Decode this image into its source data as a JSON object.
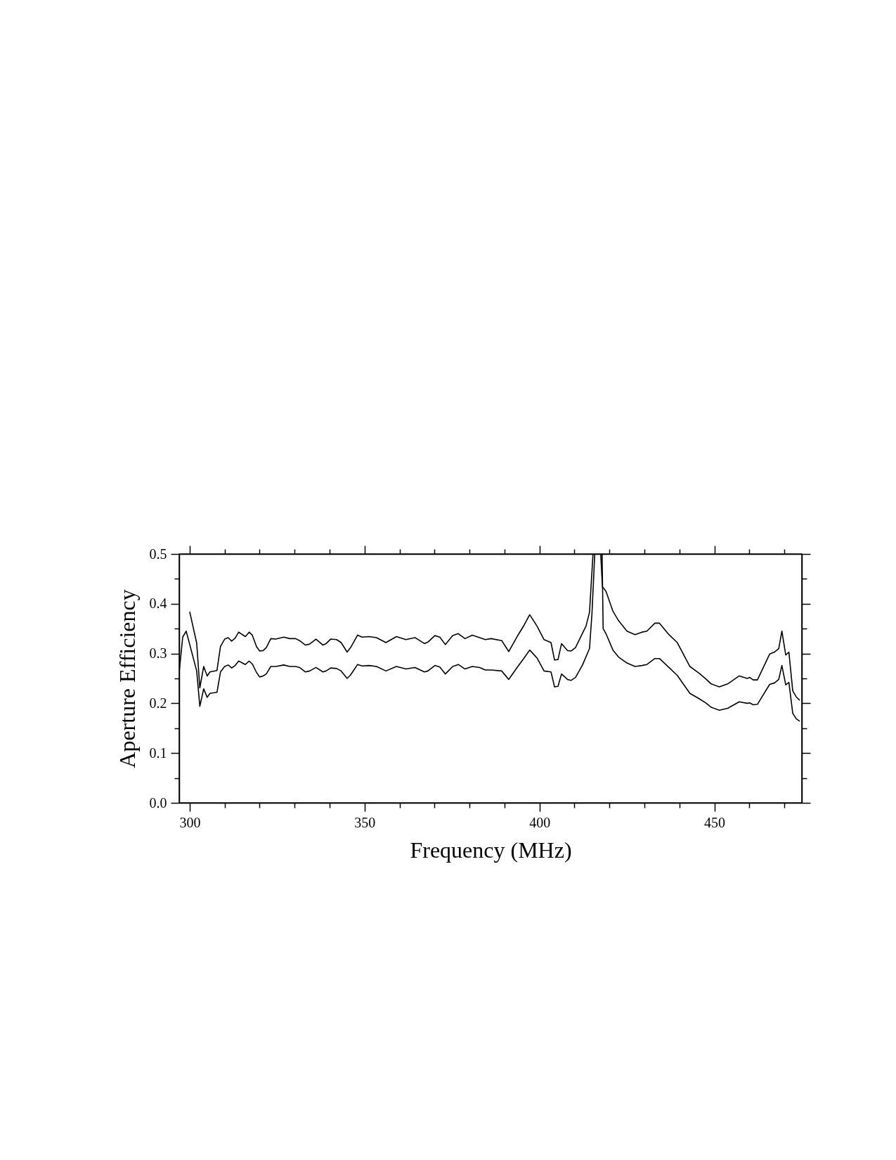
{
  "chart_data": {
    "type": "line",
    "xlabel": "Frequency (MHz)",
    "ylabel": "Aperture Efficiency",
    "xlim": [
      297,
      475
    ],
    "ylim": [
      0,
      0.5
    ],
    "xticks": [
      300,
      {
        "value": 310,
        "label": null
      },
      {
        "value": 320,
        "label": null
      },
      {
        "value": 330,
        "label": null
      },
      {
        "value": 340,
        "label": null
      },
      350,
      {
        "value": 360,
        "label": null
      },
      {
        "value": 370,
        "label": null
      },
      {
        "value": 380,
        "label": null
      },
      {
        "value": 390,
        "label": null
      },
      400,
      {
        "value": 410,
        "label": null
      },
      {
        "value": 420,
        "label": null
      },
      {
        "value": 430,
        "label": null
      },
      {
        "value": 440,
        "label": null
      },
      450,
      {
        "value": 460,
        "label": null
      },
      {
        "value": 470,
        "label": null
      }
    ],
    "yticks": [
      {
        "value": 0,
        "label": "0.0"
      },
      {
        "value": 0.05,
        "label": null
      },
      0.1,
      {
        "value": 0.15,
        "label": null
      },
      0.2,
      {
        "value": 0.25,
        "label": null
      },
      0.3,
      {
        "value": 0.35,
        "label": null
      },
      0.4,
      {
        "value": 0.45,
        "label": null
      },
      0.5
    ],
    "grid": false,
    "series": [
      {
        "color": "#000000",
        "x": [
          300,
          302,
          302.9,
          304,
          305,
          305.8,
          307.8,
          308.8,
          310,
          311,
          312,
          313,
          314,
          315.9,
          317,
          317.9,
          319.1,
          320,
          321,
          321.9,
          323.2,
          324.6,
          326.9,
          328.6,
          330.3,
          331.4,
          333.1,
          334.3,
          336.1,
          338.1,
          339,
          340.3,
          342,
          343.3,
          345,
          346,
          348,
          349.3,
          351.3,
          353.4,
          356.1,
          359.1,
          361.8,
          364.4,
          367.1,
          368.1,
          370.1,
          371.5,
          373.1,
          375.2,
          376.8,
          378.7,
          380.8,
          382.9,
          384.5,
          386.2,
          389.2,
          391.2,
          393.6,
          395.6,
          397.2,
          399.3,
          401.3,
          403.3,
          404.3,
          405.3,
          406.3,
          408,
          409,
          410.3,
          412.3,
          413.3,
          414.3,
          415.3,
          417.5,
          418,
          419,
          421,
          422.6,
          425,
          427.3,
          429.3,
          430.7,
          433,
          434.3,
          437,
          439.4,
          443,
          445.7,
          447.7,
          449.1,
          451.4,
          453.8,
          457.1,
          459.4,
          460.1,
          461.1,
          462.3,
          465.8,
          467.2,
          468.4,
          469.3,
          470.4,
          471.3,
          472.4,
          473.4,
          474.4
        ],
        "values": [
          0.384,
          0.321,
          0.231,
          0.274,
          0.255,
          0.263,
          0.266,
          0.314,
          0.329,
          0.332,
          0.325,
          0.331,
          0.343,
          0.334,
          0.343,
          0.337,
          0.314,
          0.305,
          0.306,
          0.312,
          0.33,
          0.329,
          0.333,
          0.33,
          0.33,
          0.326,
          0.317,
          0.319,
          0.329,
          0.317,
          0.32,
          0.329,
          0.328,
          0.322,
          0.303,
          0.312,
          0.337,
          0.333,
          0.334,
          0.332,
          0.322,
          0.334,
          0.328,
          0.332,
          0.32,
          0.323,
          0.336,
          0.333,
          0.318,
          0.336,
          0.34,
          0.33,
          0.337,
          0.332,
          0.328,
          0.33,
          0.326,
          0.304,
          0.334,
          0.357,
          0.378,
          0.355,
          0.328,
          0.322,
          0.287,
          0.288,
          0.32,
          0.306,
          0.305,
          0.312,
          0.341,
          0.355,
          0.383,
          0.5,
          0.5,
          0.434,
          0.425,
          0.385,
          0.366,
          0.345,
          0.338,
          0.343,
          0.345,
          0.361,
          0.361,
          0.338,
          0.322,
          0.274,
          0.26,
          0.248,
          0.239,
          0.233,
          0.239,
          0.255,
          0.25,
          0.252,
          0.247,
          0.247,
          0.299,
          0.303,
          0.31,
          0.345,
          0.297,
          0.303,
          0.225,
          0.213,
          0.206
        ]
      },
      {
        "color": "#000000",
        "x": [
          297,
          298,
          299,
          302,
          302.9,
          304,
          305,
          305.8,
          307.8,
          308.8,
          310,
          311,
          312,
          313,
          314,
          315.9,
          317,
          317.9,
          319.1,
          320,
          321,
          321.9,
          323.2,
          324.6,
          326.9,
          328.6,
          330.3,
          331.4,
          333.1,
          334.3,
          336.1,
          338.1,
          339,
          340.3,
          342,
          343.3,
          345,
          346,
          348,
          349.3,
          351.3,
          353.4,
          356.1,
          359.1,
          361.8,
          364.4,
          367.1,
          368.1,
          370.1,
          371.5,
          373.1,
          375.2,
          376.8,
          378.7,
          380.8,
          382.9,
          384.5,
          386.2,
          389.2,
          391.2,
          393.6,
          395.6,
          397.2,
          399.3,
          401.3,
          403.3,
          404.3,
          405.3,
          406.3,
          408,
          409,
          410.3,
          412.3,
          414.3,
          415,
          415.8,
          417.9,
          418.2,
          419,
          421,
          422.6,
          425,
          427.3,
          429.3,
          430.7,
          433,
          434.3,
          437,
          439.4,
          443,
          445.7,
          447.7,
          449.1,
          451.4,
          453.8,
          457.1,
          459.4,
          460.1,
          461.1,
          462.3,
          465.8,
          467.2,
          468.4,
          469.3,
          470.4,
          471.3,
          472.4,
          473.4,
          474.4
        ],
        "values": [
          0.263,
          0.333,
          0.345,
          0.265,
          0.194,
          0.229,
          0.212,
          0.22,
          0.222,
          0.263,
          0.274,
          0.277,
          0.271,
          0.276,
          0.285,
          0.278,
          0.285,
          0.279,
          0.262,
          0.253,
          0.255,
          0.259,
          0.274,
          0.274,
          0.277,
          0.274,
          0.274,
          0.272,
          0.263,
          0.265,
          0.272,
          0.263,
          0.265,
          0.271,
          0.27,
          0.265,
          0.25,
          0.257,
          0.278,
          0.275,
          0.276,
          0.274,
          0.265,
          0.274,
          0.269,
          0.272,
          0.263,
          0.265,
          0.276,
          0.273,
          0.259,
          0.274,
          0.278,
          0.269,
          0.274,
          0.272,
          0.267,
          0.267,
          0.265,
          0.248,
          0.272,
          0.291,
          0.307,
          0.291,
          0.265,
          0.263,
          0.233,
          0.234,
          0.259,
          0.248,
          0.246,
          0.252,
          0.277,
          0.31,
          0.38,
          0.5,
          0.5,
          0.35,
          0.34,
          0.307,
          0.293,
          0.281,
          0.274,
          0.276,
          0.278,
          0.29,
          0.29,
          0.272,
          0.256,
          0.22,
          0.209,
          0.2,
          0.192,
          0.186,
          0.19,
          0.203,
          0.2,
          0.201,
          0.197,
          0.198,
          0.238,
          0.241,
          0.248,
          0.276,
          0.237,
          0.242,
          0.18,
          0.169,
          0.164
        ]
      }
    ]
  }
}
